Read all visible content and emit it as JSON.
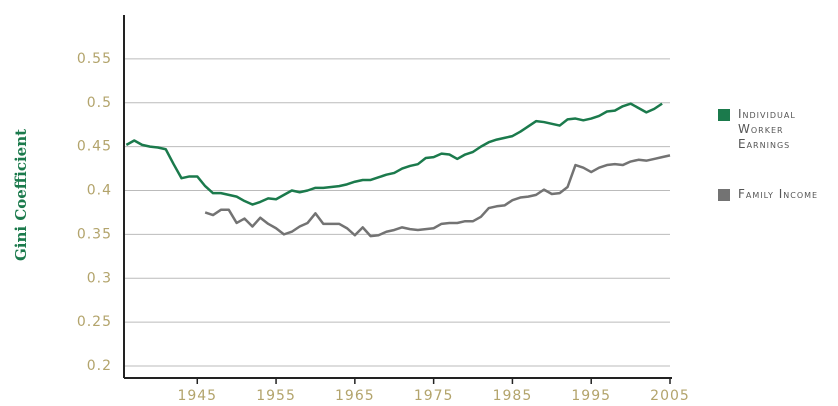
{
  "chart_data": {
    "type": "line",
    "y_label": "Gini Coefficient",
    "x": [
      1936,
      1937,
      1938,
      1939,
      1940,
      1941,
      1942,
      1943,
      1944,
      1945,
      1946,
      1947,
      1948,
      1949,
      1950,
      1951,
      1952,
      1953,
      1954,
      1955,
      1956,
      1957,
      1958,
      1959,
      1960,
      1961,
      1962,
      1963,
      1964,
      1965,
      1966,
      1967,
      1968,
      1969,
      1970,
      1971,
      1972,
      1973,
      1974,
      1975,
      1976,
      1977,
      1978,
      1979,
      1980,
      1981,
      1982,
      1983,
      1984,
      1985,
      1986,
      1987,
      1988,
      1989,
      1990,
      1991,
      1992,
      1993,
      1994,
      1995,
      1996,
      1997,
      1998,
      1999,
      2000,
      2001,
      2002,
      2003,
      2004,
      2005
    ],
    "series": [
      {
        "name": "Individual Worker Earnings",
        "color": "#1b7a4c",
        "values": [
          0.452,
          0.457,
          0.452,
          0.45,
          0.449,
          0.447,
          0.43,
          0.414,
          0.416,
          0.416,
          0.405,
          0.397,
          0.397,
          0.395,
          0.393,
          0.388,
          0.384,
          0.387,
          0.391,
          0.39,
          0.395,
          0.4,
          0.398,
          0.4,
          0.403,
          0.403,
          0.404,
          0.405,
          0.407,
          0.41,
          0.412,
          0.412,
          0.415,
          0.418,
          0.42,
          0.425,
          0.428,
          0.43,
          0.437,
          0.438,
          0.442,
          0.441,
          0.436,
          0.441,
          0.444,
          0.45,
          0.455,
          0.458,
          0.46,
          0.462,
          0.467,
          0.473,
          0.479,
          0.478,
          0.476,
          0.474,
          0.481,
          0.482,
          0.48,
          0.482,
          0.485,
          0.49,
          0.491,
          0.496,
          0.499,
          0.494,
          0.489,
          0.493,
          0.499,
          null
        ]
      },
      {
        "name": "Family Income",
        "color": "#737373",
        "values": [
          null,
          null,
          null,
          null,
          null,
          null,
          null,
          null,
          null,
          null,
          0.375,
          0.372,
          0.378,
          0.378,
          0.363,
          0.368,
          0.359,
          0.369,
          0.362,
          0.357,
          0.35,
          0.353,
          0.359,
          0.363,
          0.374,
          0.362,
          0.362,
          0.362,
          0.357,
          0.349,
          0.358,
          0.348,
          0.349,
          0.353,
          0.355,
          0.358,
          0.356,
          0.355,
          0.356,
          0.357,
          0.362,
          0.363,
          0.363,
          0.365,
          0.365,
          0.37,
          0.38,
          0.382,
          0.383,
          0.389,
          0.392,
          0.393,
          0.395,
          0.401,
          0.396,
          0.397,
          0.404,
          0.429,
          0.426,
          0.421,
          0.426,
          0.429,
          0.43,
          0.429,
          0.433,
          0.435,
          0.434,
          0.436,
          0.438,
          0.44
        ]
      }
    ],
    "xlim": [
      1935.7,
      2005
    ],
    "xticks": [
      1945,
      1955,
      1965,
      1975,
      1985,
      1995,
      2005
    ],
    "ylim": [
      0.2,
      0.6
    ],
    "yticks": [
      0.2,
      0.25,
      0.3,
      0.35,
      0.4,
      0.45,
      0.5,
      0.55
    ],
    "grid": true
  }
}
